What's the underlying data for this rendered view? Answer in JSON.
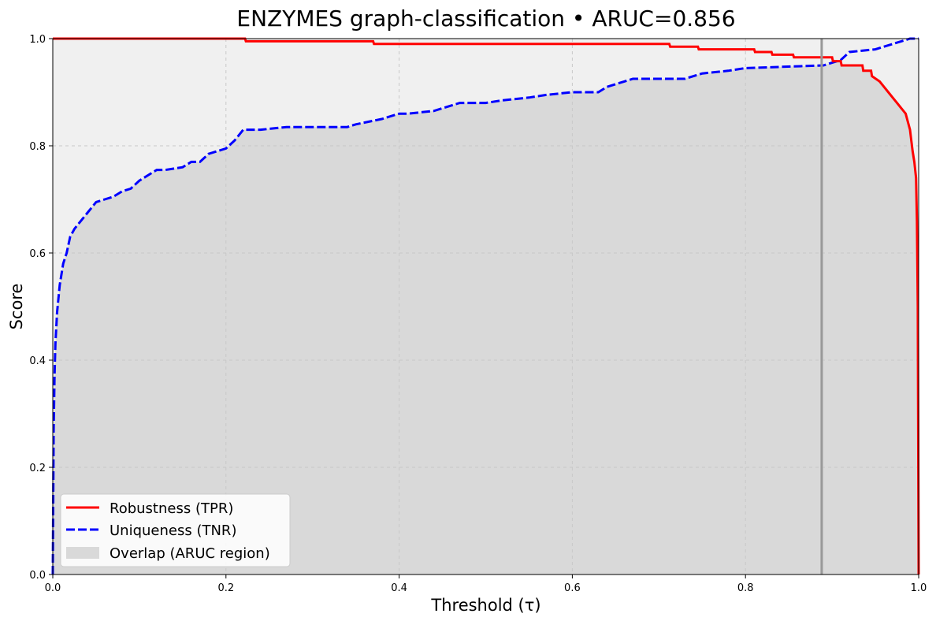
{
  "chart_data": {
    "type": "line",
    "title": "ENZYMES graph-classification • ARUC=0.856",
    "xlabel": "Threshold (τ)",
    "ylabel": "Score",
    "xlim": [
      0.0,
      1.0
    ],
    "ylim": [
      0.0,
      1.0
    ],
    "xticks": [
      "0.0",
      "0.2",
      "0.4",
      "0.6",
      "0.8",
      "1.0"
    ],
    "yticks": [
      "0.0",
      "0.2",
      "0.4",
      "0.6",
      "0.8",
      "1.0"
    ],
    "grid": true,
    "legend_position": "lower-left",
    "vertical_line_x": 0.888,
    "series": [
      {
        "name": "Robustness (TPR)",
        "color": "#ff0000",
        "style": "solid",
        "x": [
          0.0,
          0.222,
          0.223,
          0.37,
          0.371,
          0.712,
          0.713,
          0.745,
          0.746,
          0.81,
          0.811,
          0.83,
          0.831,
          0.855,
          0.856,
          0.9,
          0.901,
          0.91,
          0.911,
          0.935,
          0.936,
          0.945,
          0.946,
          0.955,
          0.96,
          0.965,
          0.97,
          0.975,
          0.98,
          0.985,
          0.99,
          0.993,
          0.995,
          0.997,
          0.998,
          0.999,
          1.0
        ],
        "y": [
          1.0,
          1.0,
          0.995,
          0.995,
          0.99,
          0.99,
          0.985,
          0.985,
          0.98,
          0.98,
          0.975,
          0.975,
          0.97,
          0.97,
          0.965,
          0.965,
          0.958,
          0.958,
          0.95,
          0.95,
          0.94,
          0.94,
          0.93,
          0.92,
          0.91,
          0.9,
          0.89,
          0.88,
          0.87,
          0.86,
          0.83,
          0.79,
          0.77,
          0.74,
          0.66,
          0.5,
          0.0
        ]
      },
      {
        "name": "Uniqueness (TNR)",
        "color": "#0000ff",
        "style": "dashed",
        "x": [
          0.0,
          0.001,
          0.002,
          0.003,
          0.005,
          0.008,
          0.012,
          0.016,
          0.02,
          0.025,
          0.03,
          0.035,
          0.04,
          0.045,
          0.05,
          0.06,
          0.07,
          0.08,
          0.09,
          0.1,
          0.11,
          0.12,
          0.13,
          0.15,
          0.16,
          0.17,
          0.18,
          0.2,
          0.21,
          0.22,
          0.24,
          0.27,
          0.34,
          0.35,
          0.38,
          0.39,
          0.4,
          0.41,
          0.44,
          0.45,
          0.47,
          0.5,
          0.52,
          0.55,
          0.57,
          0.6,
          0.63,
          0.64,
          0.66,
          0.67,
          0.73,
          0.74,
          0.75,
          0.78,
          0.8,
          0.89,
          0.9,
          0.91,
          0.92,
          0.95,
          0.96,
          0.97,
          0.98,
          0.99,
          1.0
        ],
        "y": [
          0.0,
          0.27,
          0.37,
          0.43,
          0.49,
          0.54,
          0.58,
          0.6,
          0.63,
          0.645,
          0.655,
          0.665,
          0.675,
          0.685,
          0.695,
          0.7,
          0.705,
          0.715,
          0.72,
          0.735,
          0.745,
          0.755,
          0.755,
          0.76,
          0.77,
          0.77,
          0.785,
          0.795,
          0.81,
          0.83,
          0.83,
          0.835,
          0.835,
          0.84,
          0.85,
          0.855,
          0.86,
          0.86,
          0.865,
          0.87,
          0.88,
          0.88,
          0.885,
          0.89,
          0.895,
          0.9,
          0.9,
          0.91,
          0.92,
          0.925,
          0.925,
          0.93,
          0.935,
          0.94,
          0.945,
          0.95,
          0.955,
          0.96,
          0.975,
          0.98,
          0.985,
          0.99,
          0.995,
          1.0,
          1.0
        ]
      },
      {
        "name": "Overlap (ARUC region)",
        "color": "#d9d9d9",
        "style": "fill"
      }
    ]
  }
}
